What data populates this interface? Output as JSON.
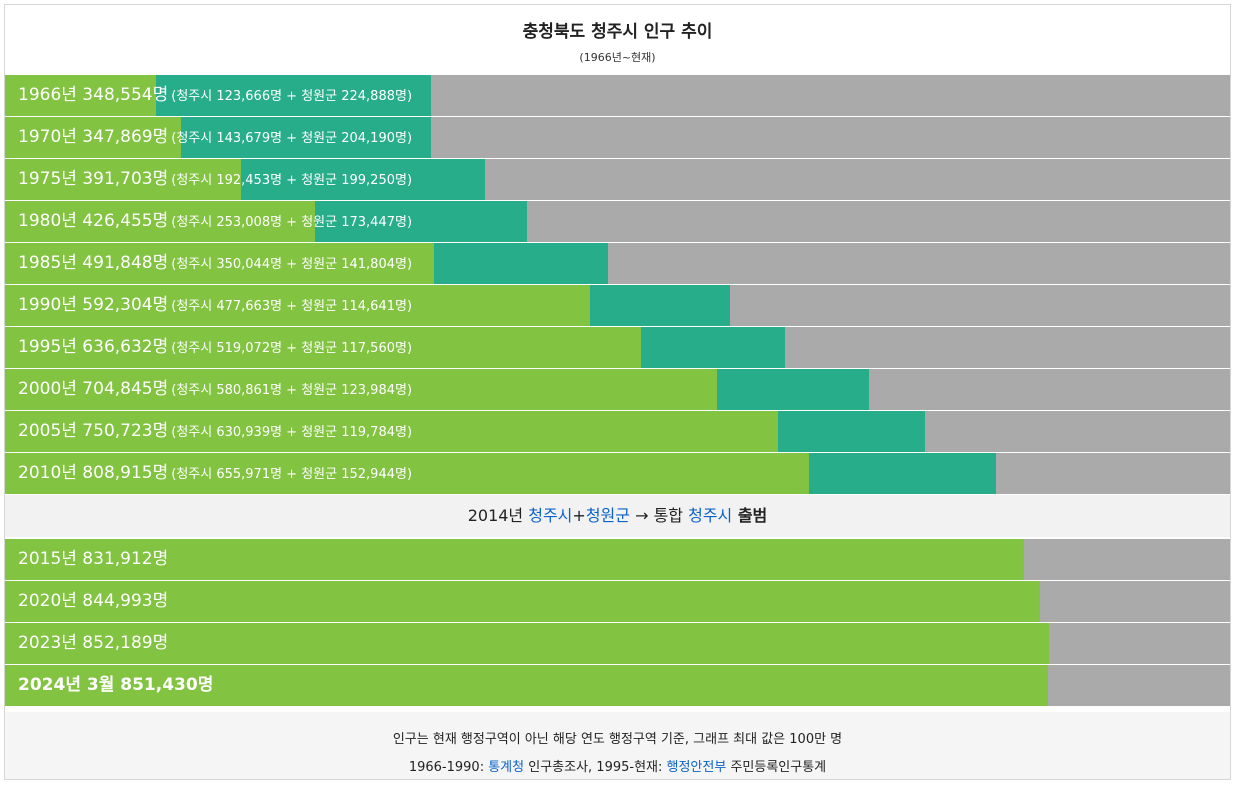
{
  "title": "충청북도 청주시 인구 추이",
  "subtitle": "(1966년~현재)",
  "chart_data": {
    "type": "bar",
    "orientation": "horizontal-stacked",
    "max_value": 1000000,
    "colors": {
      "cheongju_city": "#82c341",
      "cheongwon_county": "#27ad8a",
      "remainder": "#aaaaaa"
    },
    "rows": [
      {
        "label": "1966년 348,554명",
        "detail": "(청주시 123,666명 + 청원군 224,888명)",
        "city": 123666,
        "county": 224888
      },
      {
        "label": "1970년 347,869명",
        "detail": "(청주시 143,679명 + 청원군 204,190명)",
        "city": 143679,
        "county": 204190
      },
      {
        "label": "1975년 391,703명",
        "detail": "(청주시 192,453명 + 청원군 199,250명)",
        "city": 192453,
        "county": 199250
      },
      {
        "label": "1980년 426,455명",
        "detail": "(청주시 253,008명 + 청원군 173,447명)",
        "city": 253008,
        "county": 173447
      },
      {
        "label": "1985년 491,848명",
        "detail": "(청주시 350,044명 + 청원군 141,804명)",
        "city": 350044,
        "county": 141804
      },
      {
        "label": "1990년 592,304명",
        "detail": "(청주시 477,663명 + 청원군 114,641명)",
        "city": 477663,
        "county": 114641
      },
      {
        "label": "1995년 636,632명",
        "detail": "(청주시 519,072명 + 청원군 117,560명)",
        "city": 519072,
        "county": 117560
      },
      {
        "label": "2000년 704,845명",
        "detail": "(청주시 580,861명 + 청원군 123,984명)",
        "city": 580861,
        "county": 123984
      },
      {
        "label": "2005년 750,723명",
        "detail": "(청주시 630,939명 + 청원군 119,784명)",
        "city": 630939,
        "county": 119784
      },
      {
        "label": "2010년 808,915명",
        "detail": "(청주시 655,971명 + 청원군 152,944명)",
        "city": 655971,
        "county": 152944
      }
    ],
    "rows_after_merge": [
      {
        "label": "2015년 831,912명",
        "value": 831912,
        "bold": false
      },
      {
        "label": "2020년 844,993명",
        "value": 844993,
        "bold": false
      },
      {
        "label": "2023년 852,189명",
        "value": 852189,
        "bold": false
      },
      {
        "label": "2024년 3월 851,430명",
        "value": 851430,
        "bold": true
      }
    ]
  },
  "merge_note": {
    "year": "2014년 ",
    "city_link": "청주시",
    "plus": "+",
    "county_link": "청원군",
    "arrow": " → 통합 ",
    "new_city_link": "청주시",
    "suffix": " 출범"
  },
  "footer": {
    "line1": "인구는 현재 행정구역이 아닌 해당 연도 행정구역 기준, 그래프 최대 값은 100만 명",
    "line2_prefix": "1966-1990: ",
    "line2_link1": "통계청",
    "line2_mid": " 인구총조사, 1995-현재: ",
    "line2_link2": "행정안전부",
    "line2_suffix": " 주민등록인구통계"
  }
}
